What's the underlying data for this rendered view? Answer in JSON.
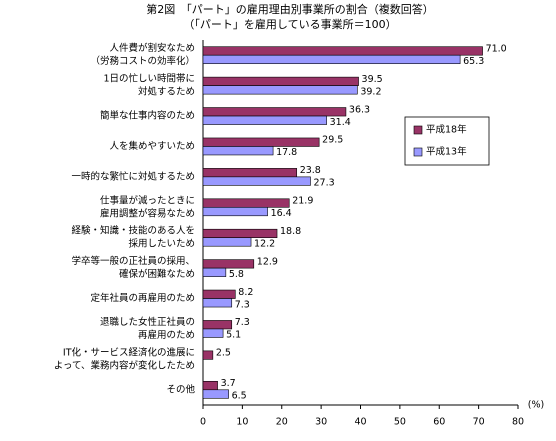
{
  "chart_data": {
    "type": "bar",
    "orientation": "horizontal",
    "title": [
      "第2図　「パート」の雇用理由別事業所の割合（複数回答）",
      "（「パート」を雇用している事業所＝100）"
    ],
    "categories": [
      [
        "人件費が割安なため",
        "（労務コストの効率化）"
      ],
      [
        "1日の忙しい時間帯に",
        "対処するため"
      ],
      [
        "簡単な仕事内容のため"
      ],
      [
        "人を集めやすいため"
      ],
      [
        "一時的な繁忙に対処するため"
      ],
      [
        "仕事量が減ったときに",
        "雇用調整が容易なため"
      ],
      [
        "経験・知識・技能のある人を",
        "採用したいため"
      ],
      [
        "学卒等一般の正社員の採用、",
        "確保が困難なため"
      ],
      [
        "定年社員の再雇用のため"
      ],
      [
        "退職した女性正社員の",
        "再雇用のため"
      ],
      [
        "IT化・サービス経済化の進展に",
        "よって、業務内容が変化したため"
      ],
      [
        "その他"
      ]
    ],
    "series": [
      {
        "name": "平成18年",
        "color": "#993366",
        "values": [
          71.0,
          39.5,
          36.3,
          29.5,
          23.8,
          21.9,
          18.8,
          12.9,
          8.2,
          7.3,
          2.5,
          3.7
        ],
        "value_labels": [
          "71.0",
          "39.5",
          "36.3",
          "29.5",
          "23.8",
          "21.9",
          "18.8",
          "12.9",
          "8.2",
          "7.3",
          "2.5",
          "3.7"
        ]
      },
      {
        "name": "平成13年",
        "color": "#9999ff",
        "values": [
          65.3,
          39.2,
          31.4,
          17.8,
          27.3,
          16.4,
          12.2,
          5.8,
          7.3,
          5.1,
          null,
          6.5
        ],
        "value_labels": [
          "65.3",
          "39.2",
          "31.4",
          "17.8",
          "27.3",
          "16.4",
          "12.2",
          "5.8",
          "7.3",
          "5.1",
          null,
          "6.5"
        ]
      }
    ],
    "xlim": [
      0,
      80
    ],
    "xticks": [
      0,
      10,
      20,
      30,
      40,
      50,
      60,
      70,
      80
    ],
    "unit_label": "(%)",
    "legend": "right"
  }
}
